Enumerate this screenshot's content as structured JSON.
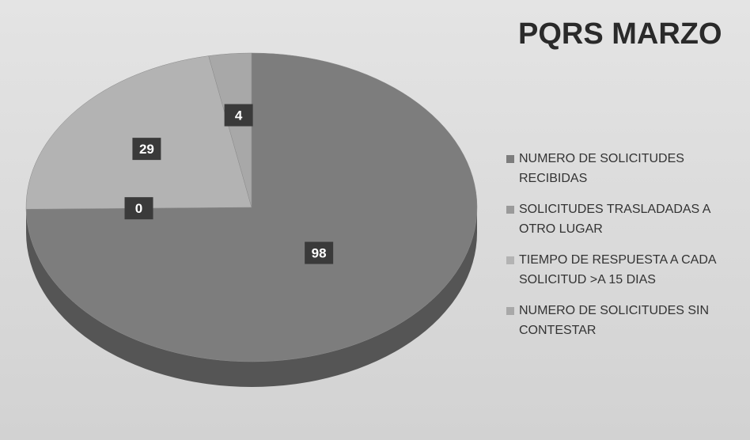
{
  "chart_data": {
    "type": "pie",
    "title": "PQRS MARZO",
    "categories": [
      "NUMERO DE SOLICITUDES RECIBIDAS",
      "SOLICITUDES TRASLADADAS A OTRO LUGAR",
      "TIEMPO DE RESPUESTA A CADA SOLICITUD >A 15 DIAS",
      "NUMERO DE SOLICITUDES SIN CONTESTAR"
    ],
    "values": [
      98,
      0,
      29,
      4
    ],
    "colors": [
      "#7d7d7d",
      "#9a9a9a",
      "#b3b3b3",
      "#a8a8a8"
    ],
    "legend": "right"
  }
}
